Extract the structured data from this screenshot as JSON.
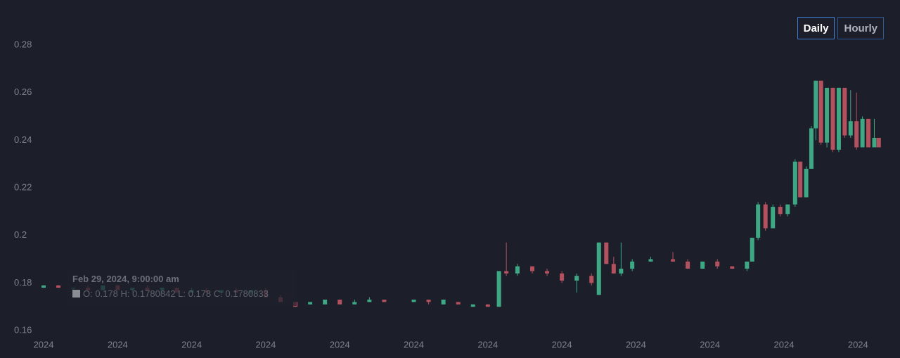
{
  "chart_data": {
    "type": "candlestick",
    "xlim": [
      -1,
      113.2
    ],
    "ylim": [
      0.16,
      0.28
    ],
    "xticks": [
      {
        "value": 0,
        "label": "2024"
      },
      {
        "value": 10,
        "label": "2024"
      },
      {
        "value": 20,
        "label": "2024"
      },
      {
        "value": 30,
        "label": "2024"
      },
      {
        "value": 40,
        "label": "2024"
      },
      {
        "value": 50,
        "label": "2024"
      },
      {
        "value": 60,
        "label": "2024"
      },
      {
        "value": 70,
        "label": "2024"
      },
      {
        "value": 80,
        "label": "2024"
      },
      {
        "value": 90,
        "label": "2024"
      },
      {
        "value": 100,
        "label": "2024"
      },
      {
        "value": 110,
        "label": "2024"
      }
    ],
    "yticks": [
      0.16,
      0.18,
      0.2,
      0.22,
      0.24,
      0.26,
      0.28
    ],
    "up_color": "#3ea884",
    "down_color": "#b3515f",
    "x": [
      0,
      2,
      4,
      6,
      8,
      10,
      12,
      14,
      16,
      18,
      20,
      22,
      24,
      26,
      28,
      30,
      32,
      34,
      36,
      38,
      40,
      42,
      44,
      46,
      50,
      52,
      54,
      56,
      58,
      60,
      61.5,
      62.5,
      64,
      66,
      68,
      70,
      72,
      74,
      75,
      76,
      77,
      78,
      79.5,
      82,
      85,
      87,
      89,
      91,
      93,
      95,
      95.7,
      96.5,
      97.5,
      98.5,
      99.5,
      100.5,
      101.5,
      102.2,
      103,
      103.7,
      104.3,
      105,
      105.8,
      106.6,
      107.4,
      108.2,
      109,
      109.8,
      110.6,
      111.4,
      112.2,
      112.8
    ],
    "open": [
      0.178,
      0.179,
      0.178,
      0.178,
      0.177,
      0.179,
      0.177,
      0.178,
      0.177,
      0.178,
      0.176,
      0.177,
      0.176,
      0.177,
      0.176,
      0.177,
      0.174,
      0.172,
      0.171,
      0.171,
      0.173,
      0.171,
      0.172,
      0.173,
      0.172,
      0.173,
      0.171,
      0.172,
      0.17,
      0.171,
      0.17,
      0.185,
      0.184,
      0.187,
      0.185,
      0.184,
      0.181,
      0.183,
      0.175,
      0.197,
      0.188,
      0.184,
      0.186,
      0.189,
      0.19,
      0.189,
      0.186,
      0.189,
      0.187,
      0.186,
      0.189,
      0.199,
      0.213,
      0.203,
      0.212,
      0.209,
      0.213,
      0.231,
      0.216,
      0.228,
      0.245,
      0.265,
      0.239,
      0.262,
      0.236,
      0.262,
      0.242,
      0.248,
      0.237,
      0.249,
      0.237,
      0.241
    ],
    "high": [
      0.179,
      0.179,
      0.178,
      0.179,
      0.179,
      0.179,
      0.178,
      0.179,
      0.178,
      0.178,
      0.178,
      0.178,
      0.177,
      0.178,
      0.177,
      0.178,
      0.175,
      0.172,
      0.172,
      0.173,
      0.173,
      0.173,
      0.174,
      0.173,
      0.173,
      0.173,
      0.173,
      0.172,
      0.171,
      0.171,
      0.185,
      0.197,
      0.188,
      0.187,
      0.186,
      0.185,
      0.184,
      0.184,
      0.197,
      0.197,
      0.191,
      0.197,
      0.19,
      0.191,
      0.193,
      0.19,
      0.189,
      0.19,
      0.187,
      0.189,
      0.199,
      0.214,
      0.214,
      0.213,
      0.213,
      0.213,
      0.232,
      0.231,
      0.229,
      0.246,
      0.265,
      0.265,
      0.262,
      0.262,
      0.262,
      0.262,
      0.261,
      0.26,
      0.25,
      0.249,
      0.249,
      0.241
    ],
    "low": [
      0.178,
      0.178,
      0.177,
      0.177,
      0.177,
      0.177,
      0.176,
      0.177,
      0.176,
      0.176,
      0.176,
      0.176,
      0.175,
      0.176,
      0.175,
      0.174,
      0.172,
      0.17,
      0.171,
      0.171,
      0.171,
      0.171,
      0.172,
      0.172,
      0.172,
      0.171,
      0.171,
      0.171,
      0.17,
      0.17,
      0.17,
      0.183,
      0.183,
      0.184,
      0.183,
      0.18,
      0.176,
      0.179,
      0.175,
      0.188,
      0.184,
      0.183,
      0.185,
      0.189,
      0.189,
      0.186,
      0.186,
      0.186,
      0.186,
      0.185,
      0.189,
      0.198,
      0.202,
      0.203,
      0.208,
      0.208,
      0.212,
      0.216,
      0.216,
      0.228,
      0.24,
      0.238,
      0.237,
      0.235,
      0.235,
      0.241,
      0.241,
      0.236,
      0.237,
      0.237,
      0.237,
      0.237
    ],
    "close": [
      0.179,
      0.178,
      0.178,
      0.177,
      0.179,
      0.177,
      0.178,
      0.177,
      0.178,
      0.176,
      0.177,
      0.176,
      0.177,
      0.176,
      0.177,
      0.174,
      0.172,
      0.17,
      0.172,
      0.173,
      0.171,
      0.172,
      0.173,
      0.172,
      0.173,
      0.172,
      0.173,
      0.171,
      0.171,
      0.17,
      0.185,
      0.184,
      0.187,
      0.185,
      0.184,
      0.181,
      0.183,
      0.18,
      0.197,
      0.188,
      0.184,
      0.186,
      0.189,
      0.19,
      0.189,
      0.186,
      0.189,
      0.187,
      0.186,
      0.189,
      0.199,
      0.213,
      0.203,
      0.212,
      0.209,
      0.213,
      0.231,
      0.216,
      0.228,
      0.245,
      0.265,
      0.239,
      0.262,
      0.236,
      0.262,
      0.242,
      0.248,
      0.237,
      0.249,
      0.237,
      0.241,
      0.237
    ]
  },
  "controls": {
    "buttons": [
      "Daily",
      "Hourly"
    ],
    "selected": 0
  },
  "tooltip": {
    "title": "Feb 29, 2024, 9:00:00 am",
    "text": "O: 0.178  H: 0.1780842  L: 0.178  C: 0.1780833"
  }
}
